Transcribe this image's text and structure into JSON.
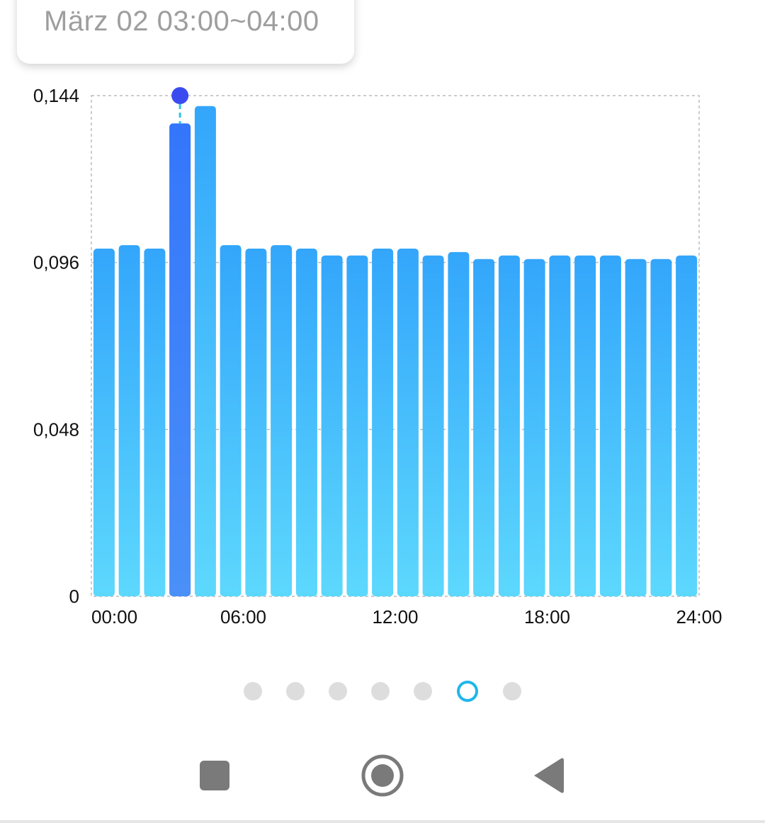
{
  "tooltip": {
    "label": "März 02 03:00~04:00"
  },
  "chart_data": {
    "type": "bar",
    "title": "",
    "xlabel": "",
    "ylabel": "",
    "ylim": [
      0,
      0.144
    ],
    "yticks": [
      0,
      0.048,
      0.096,
      0.144
    ],
    "ytick_labels": [
      "0",
      "0,048",
      "0,096",
      "0,144"
    ],
    "xticks": [
      0,
      6,
      12,
      18,
      24
    ],
    "xtick_labels": [
      "00:00",
      "06:00",
      "12:00",
      "18:00",
      "24:00"
    ],
    "categories": [
      "00:00",
      "01:00",
      "02:00",
      "03:00",
      "04:00",
      "05:00",
      "06:00",
      "07:00",
      "08:00",
      "09:00",
      "10:00",
      "11:00",
      "12:00",
      "13:00",
      "14:00",
      "15:00",
      "16:00",
      "17:00",
      "18:00",
      "19:00",
      "20:00",
      "21:00",
      "22:00",
      "23:00"
    ],
    "values": [
      0.1,
      0.101,
      0.1,
      0.136,
      0.141,
      0.101,
      0.1,
      0.101,
      0.1,
      0.098,
      0.098,
      0.1,
      0.1,
      0.098,
      0.099,
      0.097,
      0.098,
      0.097,
      0.098,
      0.098,
      0.098,
      0.097,
      0.097,
      0.098
    ],
    "selected_index": 3,
    "grid": true,
    "colors": {
      "bar_top": "#33a6fb",
      "bar_bottom": "#5dd8fd",
      "selected_top": "#3476fb",
      "selected_bottom": "#4a90f8",
      "marker": "#3a4cf0",
      "marker_line": "#2ec4e8",
      "grid": "#bbbbbb"
    }
  },
  "pager": {
    "count": 7,
    "active_index": 5,
    "active_color": "#1fb7ea",
    "inactive_color": "#dddddd"
  },
  "navbar": {
    "buttons": [
      {
        "name": "recent-apps-button",
        "icon": "square-icon"
      },
      {
        "name": "home-button",
        "icon": "home-circle-icon"
      },
      {
        "name": "back-button",
        "icon": "back-triangle-icon"
      }
    ],
    "icon_color": "#7a7a7a"
  }
}
